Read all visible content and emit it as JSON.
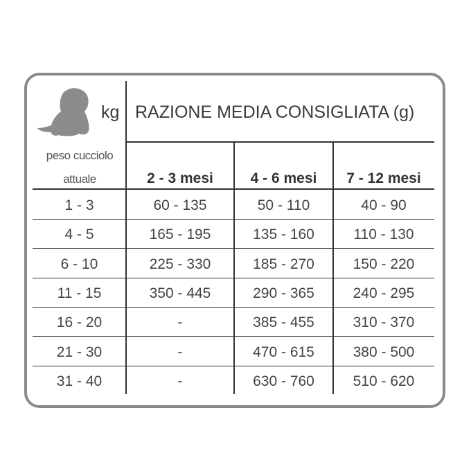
{
  "header": {
    "unit": "kg",
    "title": "RAZIONE MEDIA CONSIGLIATA (g)",
    "weight_label_line1": "peso cucciolo",
    "weight_label_line2": "attuale",
    "icon": "puppy-icon"
  },
  "columns": [
    "2 - 3 mesi",
    "4 - 6 mesi",
    "7 - 12 mesi"
  ],
  "rows": [
    {
      "weight": "1 - 3",
      "values": [
        "60 - 135",
        "50 - 110",
        "40 - 90"
      ]
    },
    {
      "weight": "4 - 5",
      "values": [
        "165 - 195",
        "135 - 160",
        "110 - 130"
      ]
    },
    {
      "weight": "6 - 10",
      "values": [
        "225 - 330",
        "185 - 270",
        "150 - 220"
      ]
    },
    {
      "weight": "11 - 15",
      "values": [
        "350 - 445",
        "290 - 365",
        "240 - 295"
      ]
    },
    {
      "weight": "16 - 20",
      "values": [
        "-",
        "385 - 455",
        "310 - 370"
      ]
    },
    {
      "weight": "21 - 30",
      "values": [
        "-",
        "470 - 615",
        "380 - 500"
      ]
    },
    {
      "weight": "31 - 40",
      "values": [
        "-",
        "630 - 760",
        "510 - 620"
      ]
    }
  ]
}
